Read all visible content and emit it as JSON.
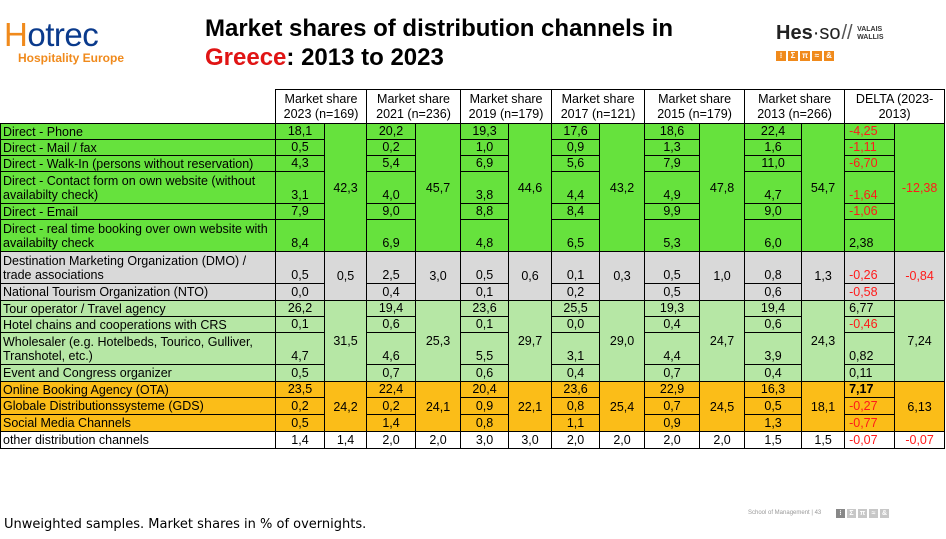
{
  "header": {
    "hotrec_name": "Hotrec",
    "hotrec_sub": "Hospitality Europe",
    "title_line1": "Market shares of distribution channels in",
    "title_country": "Greece",
    "title_rest": ": 2013 to 2023",
    "hes_word_a": "Hes",
    "hes_word_b": "·so",
    "hes_valais": "VALAIS",
    "hes_wallis": "WALLIS",
    "hes_glyphs": [
      "⁝",
      "Σ",
      "π",
      "≈",
      "&"
    ]
  },
  "table": {
    "headers": [
      "Market share 2023 (n=169)",
      "Market share 2021 (n=236)",
      "Market share 2019 (n=179)",
      "Market share 2017 (n=121)",
      "Market share 2015 (n=179)",
      "Market share 2013 (n=266)",
      "DELTA (2023-2013)"
    ],
    "rows": [
      {
        "label": "Direct - Phone",
        "v": [
          "18,1",
          "20,2",
          "19,3",
          "17,6",
          "18,6",
          "22,4"
        ],
        "delta": "-4,25"
      },
      {
        "label": "Direct - Mail / fax",
        "v": [
          "0,5",
          "0,2",
          "1,0",
          "0,9",
          "1,3",
          "1,6"
        ],
        "delta": "-1,11"
      },
      {
        "label": "Direct - Walk-In (persons without reservation)",
        "v": [
          "4,3",
          "5,4",
          "6,9",
          "5,6",
          "7,9",
          "11,0"
        ],
        "delta": "-6,70"
      },
      {
        "label": "Direct - Contact form on own website (without availabilty check)",
        "v": [
          "3,1",
          "4,0",
          "3,8",
          "4,4",
          "4,9",
          "4,7"
        ],
        "delta": "-1,64"
      },
      {
        "label": "Direct - Email",
        "v": [
          "7,9",
          "9,0",
          "8,8",
          "8,4",
          "9,9",
          "9,0"
        ],
        "delta": "-1,06"
      },
      {
        "label": "Direct - real time booking over own website with availabilty check",
        "v": [
          "8,4",
          "6,9",
          "4,8",
          "6,5",
          "5,3",
          "6,0"
        ],
        "delta": "2,38"
      },
      {
        "label": "Destination Marketing Organization (DMO) / trade associations",
        "v": [
          "0,5",
          "2,5",
          "0,5",
          "0,1",
          "0,5",
          "0,8"
        ],
        "delta": "-0,26"
      },
      {
        "label": "National Tourism Organization (NTO)",
        "v": [
          "0,0",
          "0,4",
          "0,1",
          "0,2",
          "0,5",
          "0,6"
        ],
        "delta": "-0,58"
      },
      {
        "label": "Tour operator / Travel agency",
        "v": [
          "26,2",
          "19,4",
          "23,6",
          "25,5",
          "19,3",
          "19,4"
        ],
        "delta": "6,77"
      },
      {
        "label": "Hotel chains and cooperations with CRS",
        "v": [
          "0,1",
          "0,6",
          "0,1",
          "0,0",
          "0,4",
          "0,6"
        ],
        "delta": "-0,46"
      },
      {
        "label": "Wholesaler (e.g. Hotelbeds, Tourico, Gulliver, Transhotel, etc.)",
        "v": [
          "4,7",
          "4,6",
          "5,5",
          "3,1",
          "4,4",
          "3,9"
        ],
        "delta": "0,82"
      },
      {
        "label": "Event and Congress organizer",
        "v": [
          "0,5",
          "0,7",
          "0,6",
          "0,4",
          "0,7",
          "0,4"
        ],
        "delta": "0,11"
      },
      {
        "label": "Online Booking Agency (OTA)",
        "v": [
          "23,5",
          "22,4",
          "20,4",
          "23,6",
          "22,9",
          "16,3"
        ],
        "delta": "7,17"
      },
      {
        "label": "Globale Distributionssysteme (GDS)",
        "v": [
          "0,2",
          "0,2",
          "0,9",
          "0,8",
          "0,7",
          "0,5"
        ],
        "delta": "-0,27"
      },
      {
        "label": "Social Media Channels",
        "v": [
          "0,5",
          "1,4",
          "0,8",
          "1,1",
          "0,9",
          "1,3"
        ],
        "delta": "-0,77"
      },
      {
        "label": "other distribution channels",
        "v": [
          "1,4",
          "2,0",
          "3,0",
          "2,0",
          "2,0",
          "1,5"
        ],
        "delta": "-0,07"
      }
    ],
    "group_totals": {
      "direct": [
        "42,3",
        "45,7",
        "44,6",
        "43,2",
        "47,8",
        "54,7"
      ],
      "direct_delta": "-12,38",
      "dmo": [
        "0,5",
        "3,0",
        "0,6",
        "0,3",
        "1,0",
        "1,3"
      ],
      "dmo_delta": "-0,84",
      "intermediary": [
        "31,5",
        "25,3",
        "29,7",
        "29,0",
        "24,7",
        "24,3"
      ],
      "intermediary_delta": "7,24",
      "online": [
        "24,2",
        "24,1",
        "22,1",
        "25,4",
        "24,5",
        "18,1"
      ],
      "online_delta": "6,13",
      "other": [
        "1,4",
        "2,0",
        "3,0",
        "2,0",
        "2,0",
        "1,5"
      ],
      "other_delta": "-0,07"
    }
  },
  "footer": {
    "note": "Unweighted samples. Market shares in % of overnights.",
    "school": "School of Management | 43"
  },
  "colors": {
    "direct": "#66e23d",
    "dmo": "#d9d9d9",
    "intermediary": "#b6e7a5",
    "online": "#fbbd18",
    "negative": "#ff1a1a",
    "accent_red": "#e01414",
    "brand_orange": "#f08a1c",
    "brand_blue": "#0a3a8c"
  }
}
